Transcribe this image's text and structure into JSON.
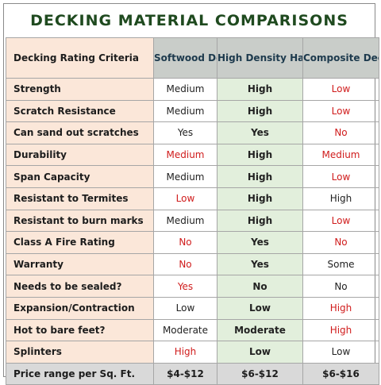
{
  "title": "DECKING MATERIAL COMPARISONS",
  "header": {
    "criteria": "Decking Rating Criteria",
    "softwood": "Softwood Decking",
    "hardwood": "High Density Hardwood Decking",
    "composite": "Composite Decking"
  },
  "colors": {
    "red": "#d01c1c",
    "title": "#1f4a1f",
    "criteria_bg": "#fbe7d9",
    "hardwood_bg": "#e2efdc",
    "header_bg": "#c9cdc9",
    "price_bg": "#d9d9d9"
  },
  "rows": [
    {
      "criteria": "Strength",
      "softwood": "Medium",
      "soft_red": false,
      "hardwood": "High",
      "hard_red": false,
      "composite": "Low",
      "comp_red": true
    },
    {
      "criteria": "Scratch Resistance",
      "softwood": "Medium",
      "soft_red": false,
      "hardwood": "High",
      "hard_red": false,
      "composite": "Low",
      "comp_red": true
    },
    {
      "criteria": "Can sand out scratches",
      "softwood": "Yes",
      "soft_red": false,
      "hardwood": "Yes",
      "hard_red": false,
      "composite": "No",
      "comp_red": true
    },
    {
      "criteria": "Durability",
      "softwood": "Medium",
      "soft_red": true,
      "hardwood": "High",
      "hard_red": false,
      "composite": "Medium",
      "comp_red": true
    },
    {
      "criteria": "Span Capacity",
      "softwood": "Medium",
      "soft_red": false,
      "hardwood": "High",
      "hard_red": false,
      "composite": "Low",
      "comp_red": true
    },
    {
      "criteria": "Resistant to Termites",
      "softwood": "Low",
      "soft_red": true,
      "hardwood": "High",
      "hard_red": false,
      "composite": "High",
      "comp_red": false
    },
    {
      "criteria": "Resistant to burn marks",
      "softwood": "Medium",
      "soft_red": false,
      "hardwood": "High",
      "hard_red": false,
      "composite": "Low",
      "comp_red": true
    },
    {
      "criteria": "Class A Fire Rating",
      "softwood": "No",
      "soft_red": true,
      "hardwood": "Yes",
      "hard_red": false,
      "composite": "No",
      "comp_red": true
    },
    {
      "criteria": "Warranty",
      "softwood": "No",
      "soft_red": true,
      "hardwood": "Yes",
      "hard_red": false,
      "composite": "Some",
      "comp_red": false
    },
    {
      "criteria": "Needs to be sealed?",
      "softwood": "Yes",
      "soft_red": true,
      "hardwood": "No",
      "hard_red": false,
      "composite": "No",
      "comp_red": false
    },
    {
      "criteria": "Expansion/Contraction",
      "softwood": "Low",
      "soft_red": false,
      "hardwood": "Low",
      "hard_red": false,
      "composite": "High",
      "comp_red": true
    },
    {
      "criteria": "Hot to bare feet?",
      "softwood": "Moderate",
      "soft_red": false,
      "hardwood": "Moderate",
      "hard_red": false,
      "composite": "High",
      "comp_red": true
    },
    {
      "criteria": "Splinters",
      "softwood": "High",
      "soft_red": true,
      "hardwood": "Low",
      "hard_red": false,
      "composite": "Low",
      "comp_red": false
    }
  ],
  "price": {
    "criteria": "Price range per Sq. Ft.",
    "softwood": "$4-$12",
    "hardwood": "$6-$12",
    "composite": "$6-$16"
  }
}
